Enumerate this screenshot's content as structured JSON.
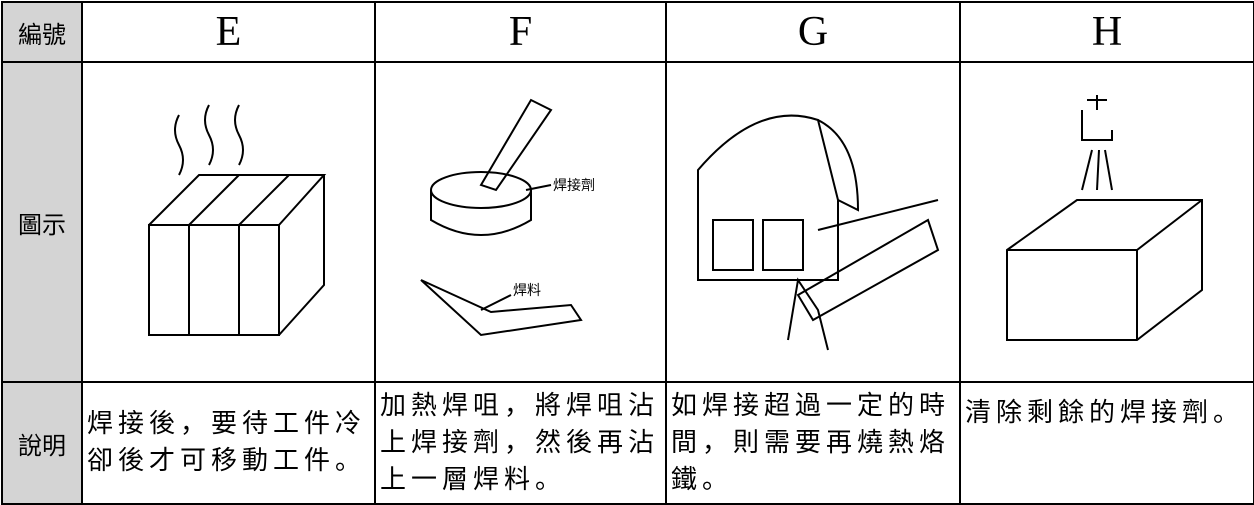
{
  "table": {
    "header": {
      "label": "編號",
      "columns": [
        "E",
        "F",
        "G",
        "H"
      ]
    },
    "image_row": {
      "label": "圖示",
      "annotations": {
        "flux": "焊接劑",
        "solder": "焊料"
      }
    },
    "description_row": {
      "label": "說明",
      "cells": [
        "焊接後，要待工件冷卻後才可移動工件。",
        "加熱焊咀，將焊咀沾上焊接劑，然後再沾上一層焊料。",
        "如焊接超過一定的時間，則需要再燒熱烙鐵。",
        "清除剩餘的焊接劑。"
      ]
    }
  }
}
